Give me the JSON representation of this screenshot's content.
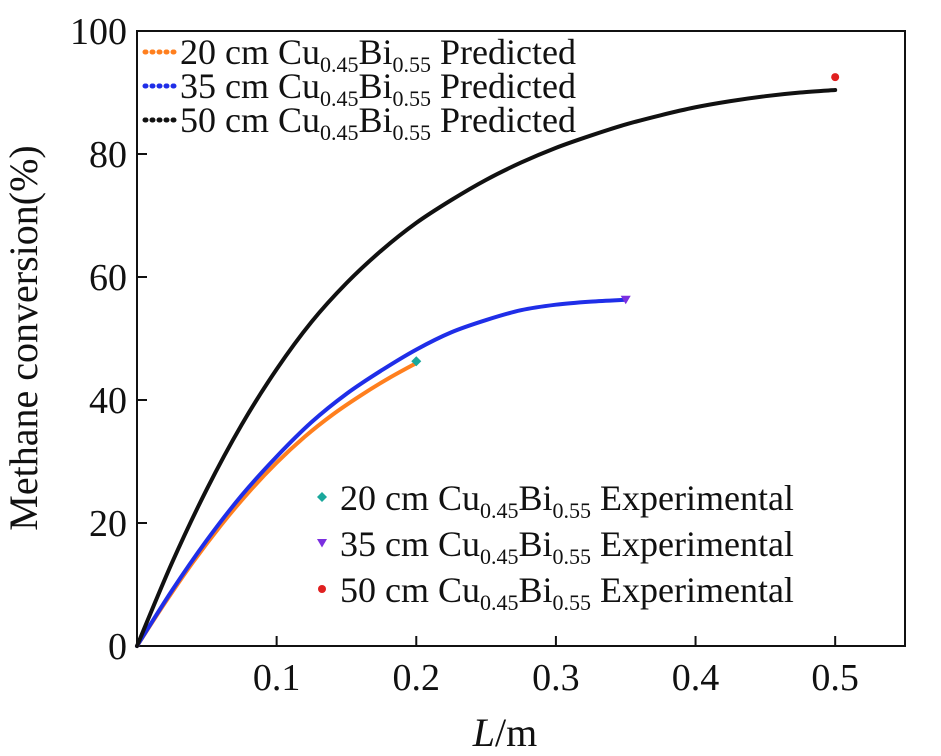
{
  "chart_data": {
    "type": "line",
    "title": "",
    "xlabel": {
      "italic": "L",
      "unit": "/m"
    },
    "ylabel": "Methane conversion(%)",
    "xlim": [
      0.0,
      0.55
    ],
    "ylim": [
      0,
      100
    ],
    "x_ticks": [
      0.1,
      0.2,
      0.3,
      0.4,
      0.5
    ],
    "x_tick_labels": [
      "0.1",
      "0.2",
      "0.3",
      "0.4",
      "0.5"
    ],
    "y_ticks": [
      0,
      20,
      40,
      60,
      80,
      100
    ],
    "y_tick_labels": [
      "0",
      "20",
      "40",
      "60",
      "80",
      "100"
    ],
    "series": [
      {
        "name": "20 cm Cu0.45Bi0.55 Predicted",
        "kind": "line",
        "color": "#ff7f1e",
        "x": [
          0.0,
          0.02,
          0.04,
          0.06,
          0.08,
          0.1,
          0.12,
          0.14,
          0.16,
          0.18,
          0.2
        ],
        "y": [
          0.0,
          7.0,
          13.6,
          19.6,
          25.0,
          29.8,
          34.0,
          37.6,
          40.7,
          43.5,
          46.0
        ]
      },
      {
        "name": "35 cm Cu0.45Bi0.55 Predicted",
        "kind": "line",
        "color": "#1f2ee8",
        "x": [
          0.0,
          0.025,
          0.05,
          0.075,
          0.1,
          0.125,
          0.15,
          0.175,
          0.2,
          0.225,
          0.25,
          0.275,
          0.3,
          0.325,
          0.35
        ],
        "y": [
          0.0,
          9.0,
          17.2,
          24.5,
          30.8,
          36.4,
          41.0,
          44.8,
          48.2,
          51.0,
          53.0,
          54.6,
          55.5,
          56.0,
          56.3
        ]
      },
      {
        "name": "50 cm Cu0.45Bi0.55 Predicted",
        "kind": "line",
        "color": "#111111",
        "x": [
          0.0,
          0.025,
          0.05,
          0.075,
          0.1,
          0.125,
          0.15,
          0.175,
          0.2,
          0.225,
          0.25,
          0.275,
          0.3,
          0.325,
          0.35,
          0.375,
          0.4,
          0.425,
          0.45,
          0.475,
          0.5
        ],
        "y": [
          0.0,
          13.5,
          25.5,
          36.0,
          45.0,
          52.7,
          59.0,
          64.3,
          68.8,
          72.5,
          75.8,
          78.6,
          81.0,
          83.0,
          84.8,
          86.3,
          87.6,
          88.6,
          89.4,
          90.0,
          90.4
        ]
      }
    ],
    "experimental": [
      {
        "name": "20 cm Cu0.45Bi0.55 Experimental",
        "marker": "diamond",
        "color": "#1aa89c",
        "x": 0.2,
        "y": 46.3
      },
      {
        "name": "35 cm Cu0.45Bi0.55 Experimental",
        "marker": "triangle-down",
        "color": "#7b2fe0",
        "x": 0.35,
        "y": 56.3
      },
      {
        "name": "50 cm Cu0.45Bi0.55 Experimental",
        "marker": "circle",
        "color": "#e02020",
        "x": 0.5,
        "y": 92.5
      }
    ],
    "legend_predicted": {
      "placement": "top-left",
      "entries": [
        {
          "length": "20 cm",
          "base": "Cu",
          "sub1": "0.45",
          "el2": "Bi",
          "sub2": "0.55",
          "suffix": "Predicted",
          "color": "#ff7f1e"
        },
        {
          "length": "35 cm",
          "base": "Cu",
          "sub1": "0.45",
          "el2": "Bi",
          "sub2": "0.55",
          "suffix": "Predicted",
          "color": "#1f2ee8"
        },
        {
          "length": "50 cm",
          "base": "Cu",
          "sub1": "0.45",
          "el2": "Bi",
          "sub2": "0.55",
          "suffix": "Predicted",
          "color": "#111111"
        }
      ]
    },
    "legend_experimental": {
      "placement": "bottom-right",
      "entries": [
        {
          "length": "20 cm",
          "base": "Cu",
          "sub1": "0.45",
          "el2": "Bi",
          "sub2": "0.55",
          "suffix": "Experimental",
          "marker": "diamond",
          "color": "#1aa89c"
        },
        {
          "length": "35 cm",
          "base": "Cu",
          "sub1": "0.45",
          "el2": "Bi",
          "sub2": "0.55",
          "suffix": "Experimental",
          "marker": "triangle-down",
          "color": "#7b2fe0"
        },
        {
          "length": "50 cm",
          "base": "Cu",
          "sub1": "0.45",
          "el2": "Bi",
          "sub2": "0.55",
          "suffix": "Experimental",
          "marker": "circle",
          "color": "#e02020"
        }
      ]
    }
  }
}
